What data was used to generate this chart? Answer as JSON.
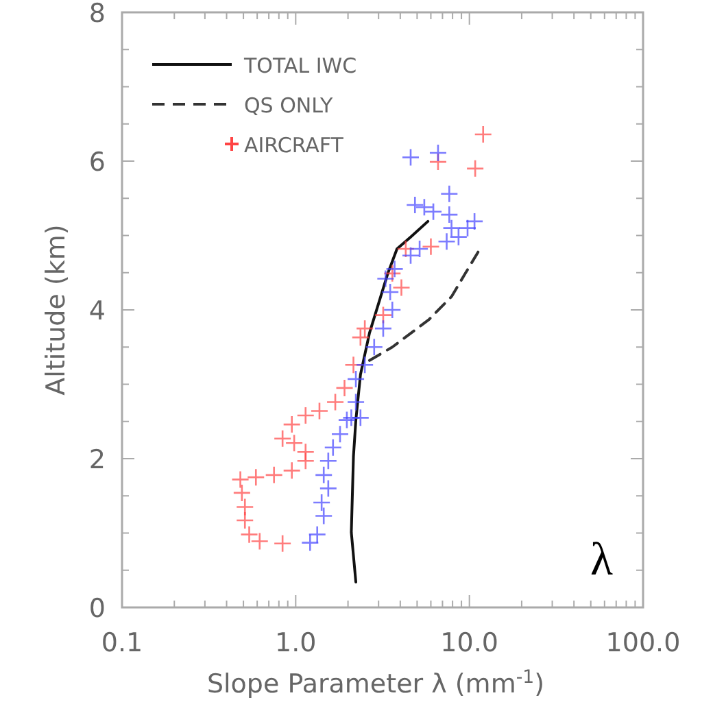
{
  "chart_data": {
    "type": "line",
    "xlabel": "Slope Parameter λ (mm$^{-1}$)",
    "ylabel": "Altitude (km)",
    "log": "x",
    "xlim": [
      0.1,
      100
    ],
    "ylim": [
      0,
      8
    ],
    "xticks": [
      {
        "value": 0.1,
        "label": "0.1"
      },
      {
        "value": 0.2,
        "label": null
      },
      {
        "value": 0.3,
        "label": null
      },
      {
        "value": 0.4,
        "label": null
      },
      {
        "value": 0.5,
        "label": null
      },
      {
        "value": 0.6,
        "label": null
      },
      {
        "value": 0.7,
        "label": null
      },
      {
        "value": 0.8,
        "label": null
      },
      {
        "value": 0.9,
        "label": null
      },
      {
        "value": 1,
        "label": "1.0"
      },
      {
        "value": 2,
        "label": null
      },
      {
        "value": 3,
        "label": null
      },
      {
        "value": 4,
        "label": null
      },
      {
        "value": 5,
        "label": null
      },
      {
        "value": 6,
        "label": null
      },
      {
        "value": 7,
        "label": null
      },
      {
        "value": 8,
        "label": null
      },
      {
        "value": 9,
        "label": null
      },
      {
        "value": 10,
        "label": "10.0"
      },
      {
        "value": 20,
        "label": null
      },
      {
        "value": 30,
        "label": null
      },
      {
        "value": 40,
        "label": null
      },
      {
        "value": 50,
        "label": null
      },
      {
        "value": 60,
        "label": null
      },
      {
        "value": 70,
        "label": null
      },
      {
        "value": 80,
        "label": null
      },
      {
        "value": 90,
        "label": null
      },
      {
        "value": 100,
        "label": "100.0"
      }
    ],
    "yticks": [
      0,
      {
        "value": 0.5,
        "label": null
      },
      {
        "value": 1,
        "label": null
      },
      {
        "value": 1.5,
        "label": null
      },
      2,
      {
        "value": 2.5,
        "label": null
      },
      {
        "value": 3,
        "label": null
      },
      {
        "value": 3.5,
        "label": null
      },
      4,
      {
        "value": 4.5,
        "label": null
      },
      {
        "value": 5,
        "label": null
      },
      {
        "value": 5.5,
        "label": null
      },
      6,
      {
        "value": 6.5,
        "label": null
      },
      {
        "value": 7,
        "label": null
      },
      {
        "value": 7.5,
        "label": null
      },
      8
    ],
    "grid": false,
    "legend": "top left",
    "annotations": [
      "λ"
    ],
    "series": [
      {
        "name": "TOTAL IWC",
        "line_style": "solid",
        "color": "#111111",
        "x": [
          2.22,
          2.09,
          2.15,
          2.22,
          2.36,
          2.66,
          3.39,
          3.83,
          4.59,
          5.77
        ],
        "values": [
          0.34,
          1.01,
          2.03,
          2.52,
          3.13,
          3.69,
          4.49,
          4.82,
          4.98,
          5.19
        ]
      },
      {
        "name": "QS ONLY",
        "line_style": "dashed",
        "color": "#333333",
        "x": [
          2.66,
          3.6,
          5.85,
          7.9,
          9.47,
          11.3
        ],
        "values": [
          3.32,
          3.5,
          3.87,
          4.18,
          4.49,
          4.79
        ]
      },
      {
        "name": "AIRCRAFT",
        "type": "scatter",
        "marker": "cross",
        "color": "#ff4444",
        "x": [
          12.0,
          10.8,
          6.6,
          6.0,
          4.3,
          4.06,
          3.6,
          3.19,
          2.5,
          2.36,
          2.15,
          1.91,
          1.69,
          1.37,
          1.14,
          0.95,
          0.84,
          0.98,
          1.14,
          1.14,
          0.95,
          0.75,
          0.59,
          0.48,
          0.49,
          0.51,
          0.51,
          0.54,
          0.62,
          0.84
        ],
        "values": [
          6.36,
          5.9,
          5.99,
          4.85,
          4.82,
          4.3,
          4.49,
          3.93,
          3.75,
          3.63,
          3.26,
          2.95,
          2.76,
          2.64,
          2.58,
          2.46,
          2.27,
          2.21,
          2.09,
          1.97,
          1.84,
          1.78,
          1.75,
          1.72,
          1.54,
          1.35,
          1.17,
          0.98,
          0.89,
          0.86
        ]
      },
      {
        "type": "scatter",
        "marker": "cross",
        "color": "#4444ff",
        "x": [
          1.21,
          1.33,
          1.45,
          1.41,
          1.54,
          1.45,
          1.54,
          1.64,
          1.8,
          1.97,
          2.09,
          2.36,
          2.22,
          2.22,
          2.5,
          2.83,
          3.19,
          3.6,
          3.5,
          3.29,
          3.71,
          4.59,
          5.17,
          4.86,
          5.5,
          6.2,
          7.66,
          7.66,
          7.89,
          8.66,
          9.76,
          10.7,
          7.4,
          4.59,
          6.6
        ],
        "values": [
          0.87,
          0.98,
          1.23,
          1.41,
          1.6,
          1.78,
          1.97,
          2.15,
          2.33,
          2.52,
          2.55,
          2.55,
          2.76,
          3.07,
          3.26,
          3.5,
          3.75,
          4.0,
          4.24,
          4.42,
          4.55,
          4.73,
          4.82,
          5.41,
          5.38,
          5.32,
          5.56,
          5.28,
          5.1,
          4.98,
          5.1,
          5.19,
          4.92,
          6.05,
          6.11
        ]
      }
    ]
  }
}
